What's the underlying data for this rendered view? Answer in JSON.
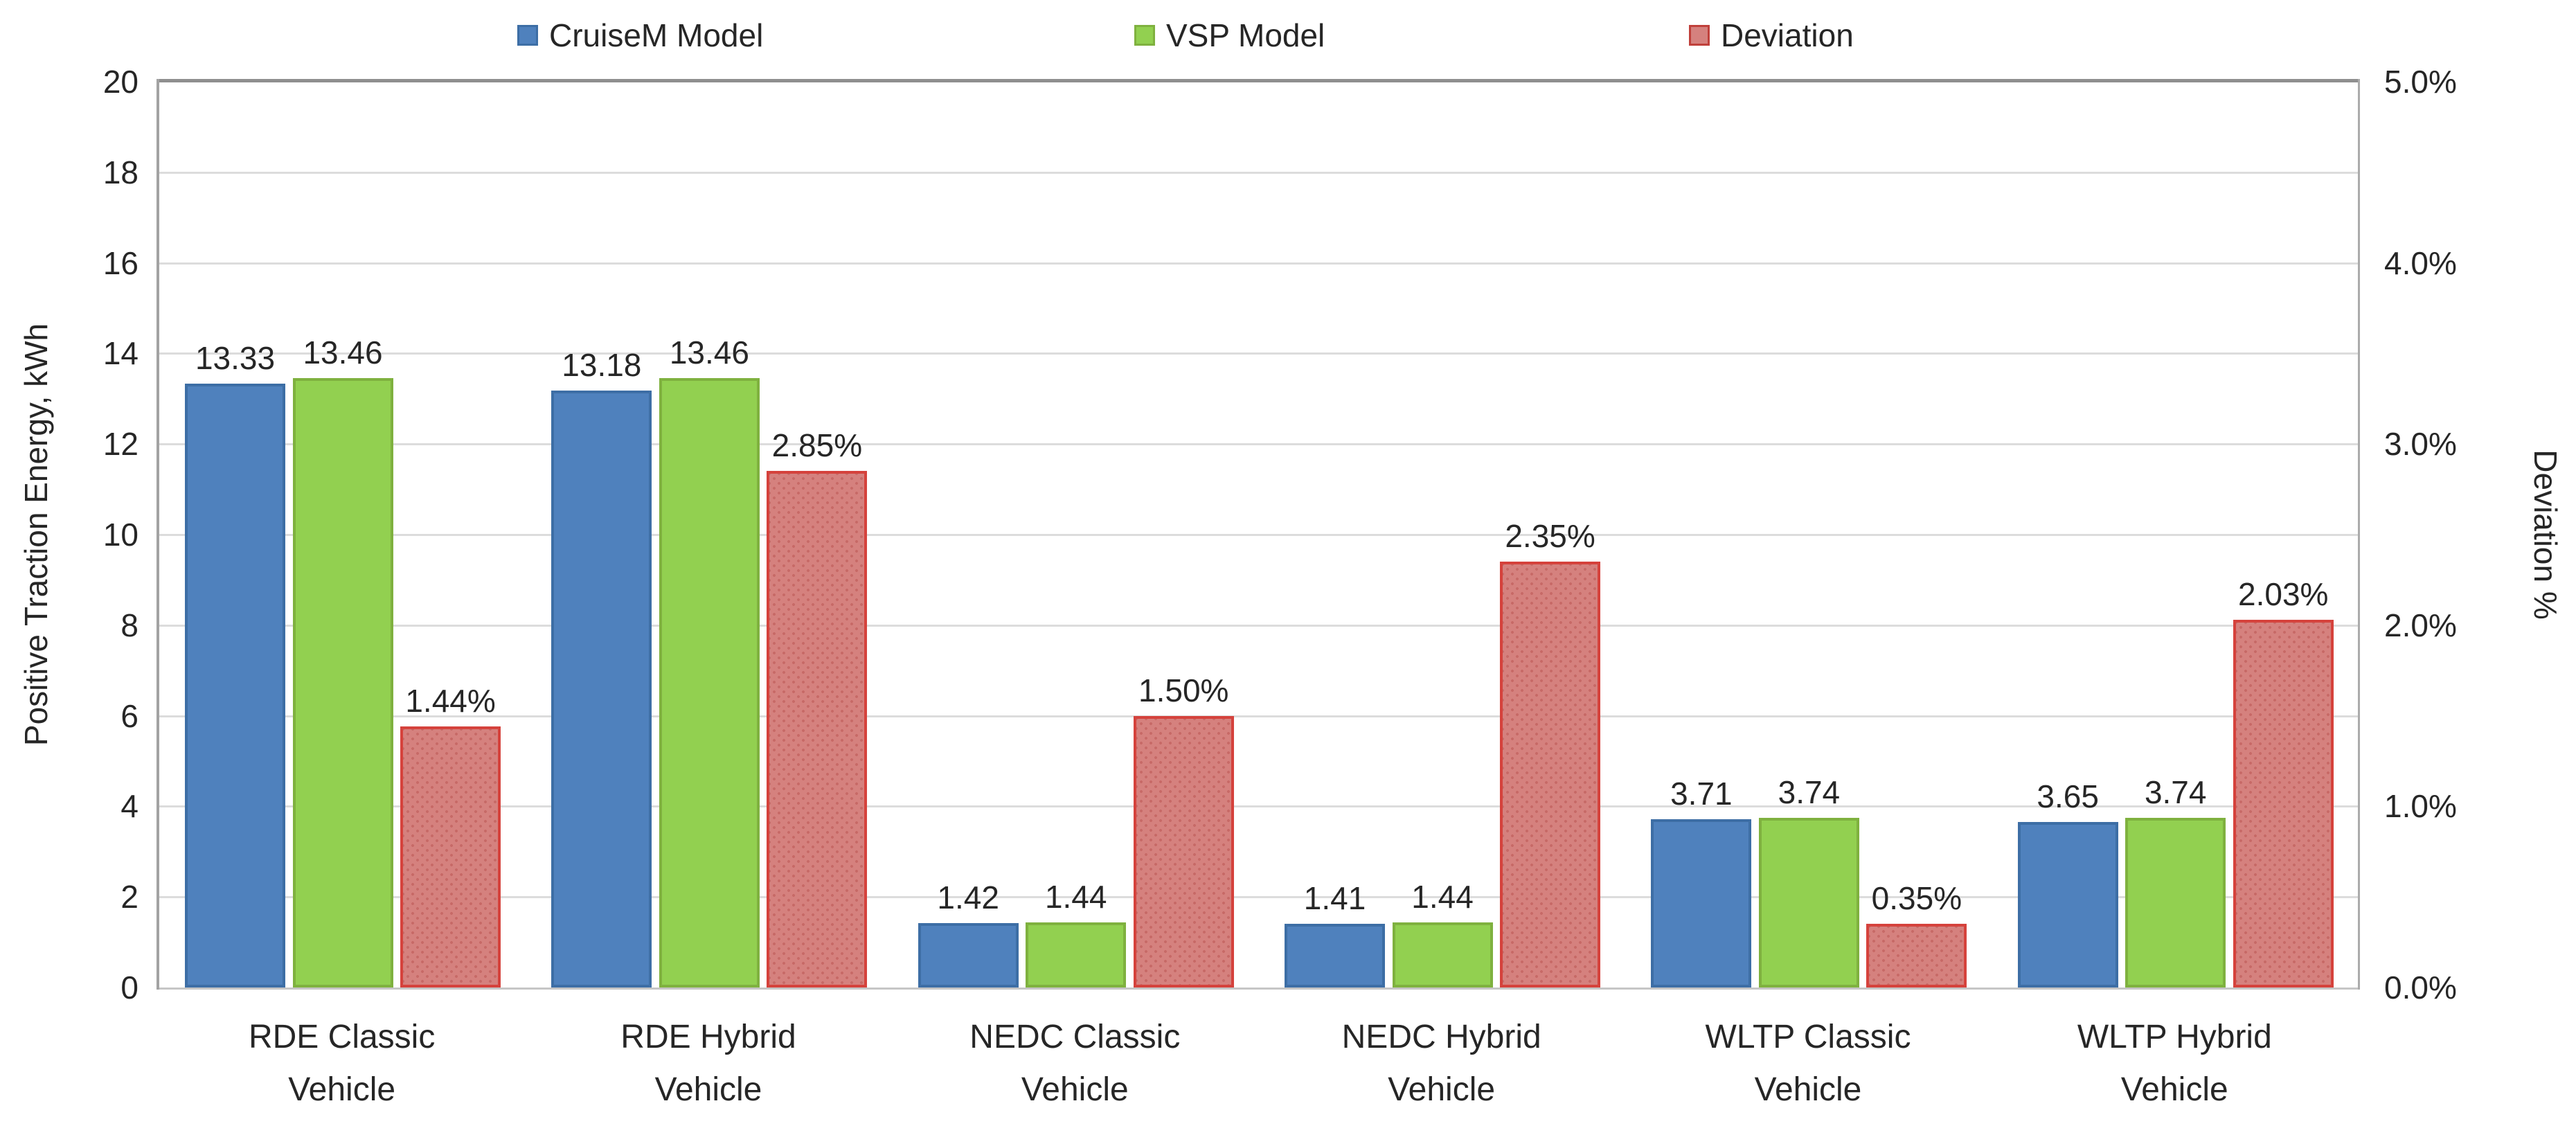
{
  "chart_data": {
    "type": "bar",
    "title": "",
    "grid": true,
    "legend_position": "top",
    "categories": [
      [
        "RDE Classic",
        "Vehicle"
      ],
      [
        "RDE Hybrid",
        "Vehicle"
      ],
      [
        "NEDC Classic",
        "Vehicle"
      ],
      [
        "NEDC Hybrid",
        "Vehicle"
      ],
      [
        "WLTP Classic",
        "Vehicle"
      ],
      [
        "WLTP Hybrid",
        "Vehicle"
      ]
    ],
    "series": [
      {
        "name": "CruiseM Model",
        "axis": "left",
        "values": [
          13.33,
          13.18,
          1.42,
          1.41,
          3.71,
          3.65
        ],
        "labels": [
          "13.33",
          "13.18",
          "1.42",
          "1.41",
          "3.71",
          "3.65"
        ],
        "fill": "#4F81BD",
        "border": "#3D6EA5",
        "pattern": false
      },
      {
        "name": "VSP Model",
        "axis": "left",
        "values": [
          13.46,
          13.46,
          1.44,
          1.44,
          3.74,
          3.74
        ],
        "labels": [
          "13.46",
          "13.46",
          "1.44",
          "1.44",
          "3.74",
          "3.74"
        ],
        "fill": "#92D050",
        "border": "#7FB13F",
        "pattern": false
      },
      {
        "name": "Deviation",
        "axis": "right",
        "values": [
          1.44,
          2.85,
          1.5,
          2.35,
          0.35,
          2.03
        ],
        "labels": [
          "1.44%",
          "2.85%",
          "1.50%",
          "2.35%",
          "0.35%",
          "2.03%"
        ],
        "fill": "#D5817E",
        "border": "#D5423C",
        "pattern": true
      }
    ],
    "left_axis": {
      "title": "Positive Traction Energy, kWh",
      "min": 0,
      "max": 20,
      "tick_labels": [
        "0",
        "2",
        "4",
        "6",
        "8",
        "10",
        "12",
        "14",
        "16",
        "18",
        "20"
      ]
    },
    "right_axis": {
      "title": "Deviation %",
      "min": 0,
      "max": 5,
      "tick_labels": [
        "0.0%",
        "1.0%",
        "2.0%",
        "3.0%",
        "4.0%",
        "5.0%"
      ]
    },
    "legend": [
      {
        "label": "CruiseM Model",
        "fill": "#4F81BD",
        "border": "#3D6EA5"
      },
      {
        "label": "VSP Model",
        "fill": "#92D050",
        "border": "#7FB13F"
      },
      {
        "label": "Deviation",
        "fill": "#D5817E",
        "border": "#C0403B"
      }
    ],
    "colors": {
      "gridline": "#DCDCDC",
      "plot_border_top": "#8F8F8F",
      "axis_line": "#ABABAB",
      "text": "#262626"
    }
  }
}
